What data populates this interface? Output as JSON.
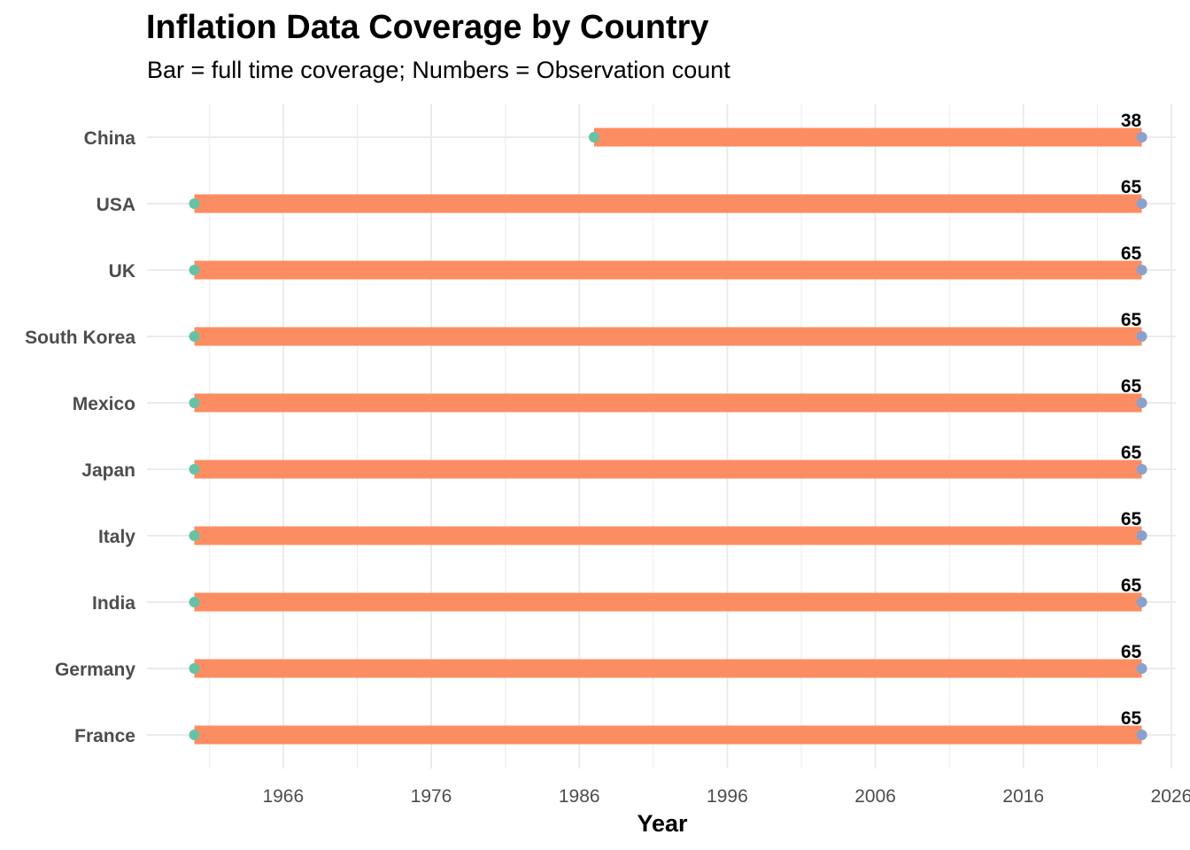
{
  "chart_data": {
    "type": "range-bar",
    "title": "Inflation Data Coverage by Country",
    "subtitle": "Bar = full time coverage; Numbers = Observation count",
    "xlabel": "Year",
    "ylabel": "",
    "xlim": [
      1956.8,
      2026.3
    ],
    "x_ticks": [
      1966,
      1976,
      1986,
      1996,
      2006,
      2016,
      2026
    ],
    "grid": true,
    "legend": "none",
    "colors": {
      "bar": "#fc8d62",
      "start_point": "#66c2a5",
      "end_point": "#8da0cb",
      "grid": "#ebebeb"
    },
    "countries": [
      {
        "name": "China",
        "start": 1987,
        "end": 2024,
        "count": 38
      },
      {
        "name": "USA",
        "start": 1960,
        "end": 2024,
        "count": 65
      },
      {
        "name": "UK",
        "start": 1960,
        "end": 2024,
        "count": 65
      },
      {
        "name": "South Korea",
        "start": 1960,
        "end": 2024,
        "count": 65
      },
      {
        "name": "Mexico",
        "start": 1960,
        "end": 2024,
        "count": 65
      },
      {
        "name": "Japan",
        "start": 1960,
        "end": 2024,
        "count": 65
      },
      {
        "name": "Italy",
        "start": 1960,
        "end": 2024,
        "count": 65
      },
      {
        "name": "India",
        "start": 1960,
        "end": 2024,
        "count": 65
      },
      {
        "name": "Germany",
        "start": 1960,
        "end": 2024,
        "count": 65
      },
      {
        "name": "France",
        "start": 1960,
        "end": 2024,
        "count": 65
      }
    ]
  }
}
